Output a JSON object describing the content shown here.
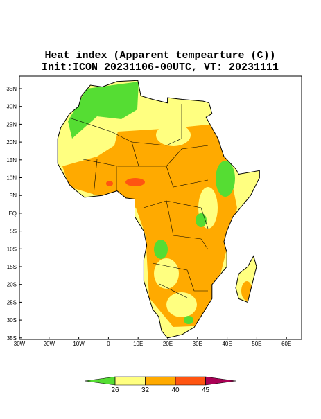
{
  "title": "Heat index (Apparent tempearture (C))",
  "subtitle": "Init:ICON 20231106-00UTC, VT: 20231111",
  "x_axis_labels": [
    "30W",
    "20W",
    "10W",
    "0",
    "10E",
    "20E",
    "30E",
    "40E",
    "50E",
    "60E"
  ],
  "y_axis_labels": [
    "35N",
    "30N",
    "25N",
    "20N",
    "15N",
    "10N",
    "5N",
    "EQ",
    "5S",
    "10S",
    "15S",
    "20S",
    "25S",
    "30S",
    "35S"
  ],
  "colorbar": {
    "ticks": [
      26,
      32,
      40,
      45
    ],
    "colors": [
      "#55dd33",
      "#ffff80",
      "#ffaa00",
      "#ff5511",
      "#aa0055"
    ]
  }
}
